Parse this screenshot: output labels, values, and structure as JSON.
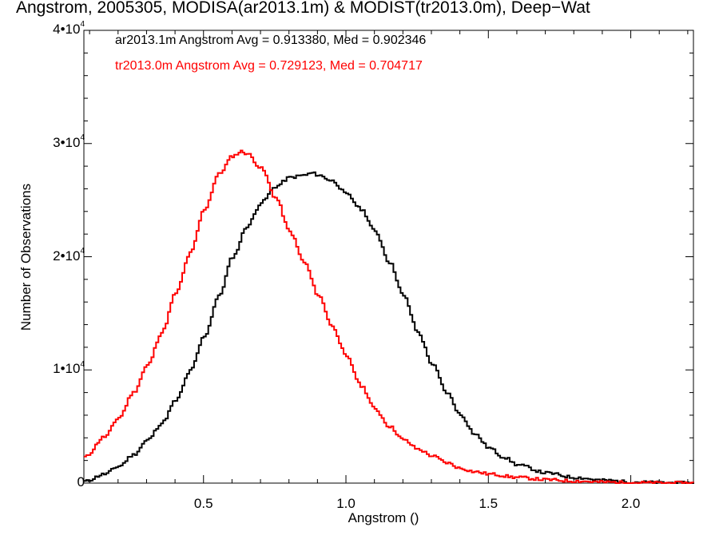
{
  "chart_data": {
    "type": "line",
    "title": "Angstrom, 2005305, MODISA(ar2013.1m) & MODIST(tr2013.0m), Deep−Wat",
    "xlabel": "Angstrom ()",
    "ylabel": "Number of Observations",
    "xlim": [
      0.08,
      2.22
    ],
    "ylim": [
      0,
      40000
    ],
    "x_ticks": [
      0.5,
      1.0,
      1.5,
      2.0
    ],
    "x_tick_labels": [
      "0.5",
      "1.0",
      "1.5",
      "2.0"
    ],
    "y_ticks": [
      0,
      10000,
      20000,
      30000,
      40000
    ],
    "y_tick_labels": [
      {
        "base": "0",
        "exp": ""
      },
      {
        "base": "1•10",
        "exp": "4"
      },
      {
        "base": "2•10",
        "exp": "4"
      },
      {
        "base": "3•10",
        "exp": "4"
      },
      {
        "base": "4•10",
        "exp": "4"
      }
    ],
    "annotations": [
      "ar2013.1m Angstrom Avg = 0.913380, Med = 0.902346",
      "tr2013.0m Angstrom Avg = 0.729123, Med = 0.704717"
    ],
    "series": [
      {
        "color": "#000000",
        "x": [
          0.08,
          0.15,
          0.2,
          0.25,
          0.3,
          0.35,
          0.4,
          0.45,
          0.5,
          0.55,
          0.6,
          0.65,
          0.7,
          0.75,
          0.8,
          0.85,
          0.88,
          0.9,
          0.95,
          1.0,
          1.05,
          1.1,
          1.15,
          1.2,
          1.25,
          1.3,
          1.35,
          1.4,
          1.45,
          1.5,
          1.55,
          1.6,
          1.7,
          1.8,
          1.9,
          2.0,
          2.1,
          2.22
        ],
        "values": [
          150,
          800,
          1500,
          2500,
          3800,
          5300,
          7300,
          9900,
          13000,
          16500,
          20000,
          22700,
          24800,
          26200,
          27000,
          27200,
          27400,
          27200,
          26700,
          25500,
          24200,
          22200,
          19500,
          16500,
          13300,
          10500,
          8000,
          6000,
          4300,
          3100,
          2300,
          1600,
          900,
          500,
          250,
          100,
          40,
          10
        ]
      },
      {
        "color": "#ff0000",
        "x": [
          0.08,
          0.15,
          0.2,
          0.25,
          0.3,
          0.35,
          0.4,
          0.45,
          0.5,
          0.55,
          0.6,
          0.63,
          0.65,
          0.7,
          0.75,
          0.8,
          0.85,
          0.9,
          0.95,
          1.0,
          1.05,
          1.1,
          1.15,
          1.2,
          1.25,
          1.3,
          1.35,
          1.4,
          1.45,
          1.5,
          1.6,
          1.7,
          1.8,
          1.9,
          2.0,
          2.1,
          2.22
        ],
        "values": [
          2300,
          4100,
          5800,
          8000,
          10400,
          13300,
          16800,
          20300,
          24200,
          27300,
          28900,
          29300,
          29100,
          27800,
          25200,
          22200,
          19500,
          16600,
          13800,
          11100,
          8600,
          6500,
          5000,
          3800,
          3000,
          2400,
          1800,
          1300,
          1000,
          800,
          500,
          300,
          180,
          90,
          40,
          15,
          5
        ]
      }
    ]
  }
}
